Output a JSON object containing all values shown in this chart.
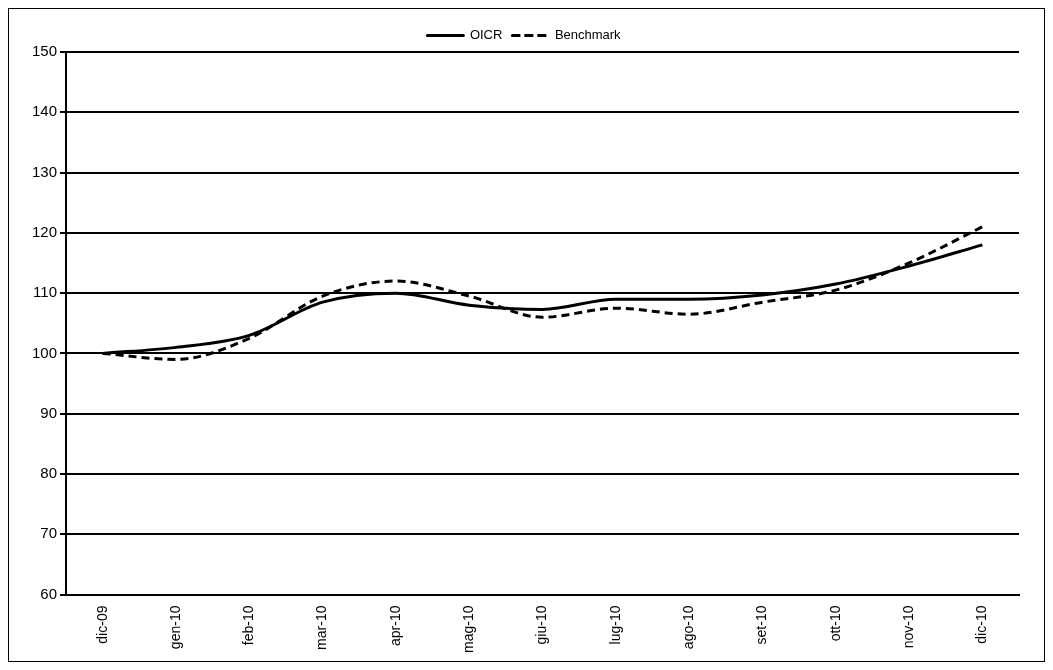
{
  "chart_data": {
    "type": "line",
    "categories": [
      "dic-09",
      "gen-10",
      "feb-10",
      "mar-10",
      "apr-10",
      "mag-10",
      "giu-10",
      "lug-10",
      "ago-10",
      "set-10",
      "ott-10",
      "nov-10",
      "dic-10"
    ],
    "series": [
      {
        "name": "OICR",
        "color": "#000000",
        "line_style": "solid",
        "values": [
          100,
          101,
          103,
          108.5,
          110,
          108,
          107.3,
          109,
          109,
          109.7,
          111.5,
          114.5,
          118
        ]
      },
      {
        "name": "Benchmark",
        "color": "#000000",
        "line_style": "dashed",
        "values": [
          100,
          99,
          102.5,
          109.5,
          112,
          109.5,
          106,
          107.5,
          106.5,
          108.5,
          110.5,
          115,
          121
        ]
      }
    ],
    "ylim": [
      60,
      150
    ],
    "yticks": [
      60,
      70,
      80,
      90,
      100,
      110,
      120,
      130,
      140,
      150
    ],
    "grid": "y",
    "legend": "top",
    "marker": "none"
  }
}
